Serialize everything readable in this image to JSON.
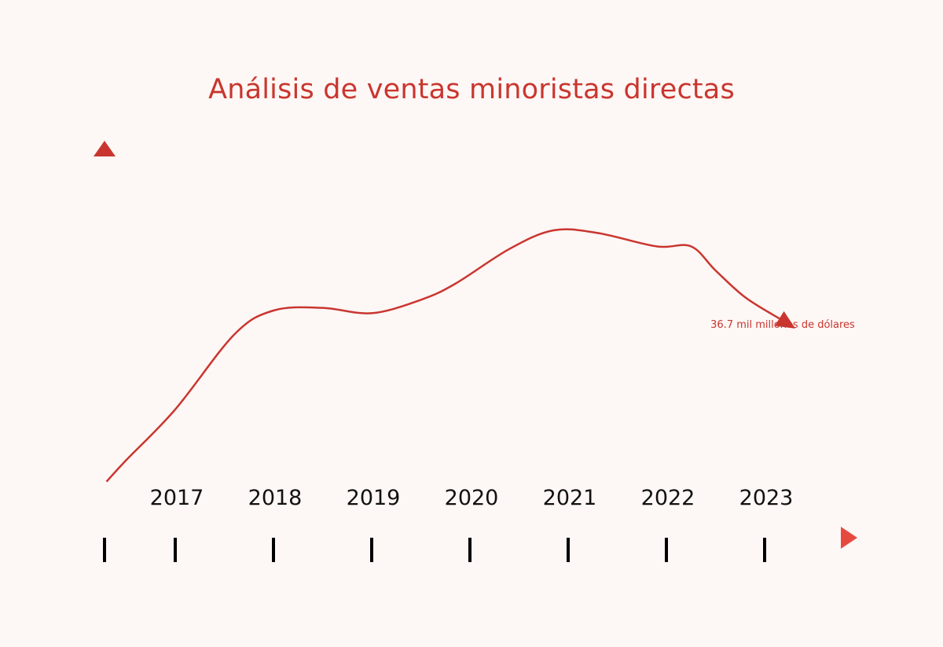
{
  "chart_data": {
    "type": "line",
    "title": "Análisis de ventas minoristas directas",
    "xlabel": "",
    "ylabel": "",
    "categories": [
      "2017",
      "2018",
      "2019",
      "2020",
      "2021",
      "2022",
      "2023"
    ],
    "x": [
      2016.3,
      2016.5,
      2017,
      2017.6,
      2018,
      2018.5,
      2019,
      2019.5,
      2019.85,
      2020.4,
      2020.85,
      2021.3,
      2021.9,
      2022.25,
      2022.5,
      2022.8,
      2023.15
    ],
    "values": [
      31.1,
      31.9,
      33.8,
      36.6,
      37.5,
      37.6,
      37.4,
      37.9,
      38.5,
      39.8,
      40.5,
      40.4,
      39.9,
      39.9,
      39.0,
      38.0,
      37.2
    ],
    "end_annotation": "36.7 mil millones de dólares",
    "ylim": [
      29,
      45
    ],
    "grid": false,
    "legend": "none",
    "colors": {
      "line": "#c9362f",
      "title": "#c9362f",
      "annotation": "#c9362f",
      "axis_dark": "#8b1414",
      "axis_light": "#f07068",
      "ticks": "#000000",
      "background": "#fdf7f5"
    }
  }
}
